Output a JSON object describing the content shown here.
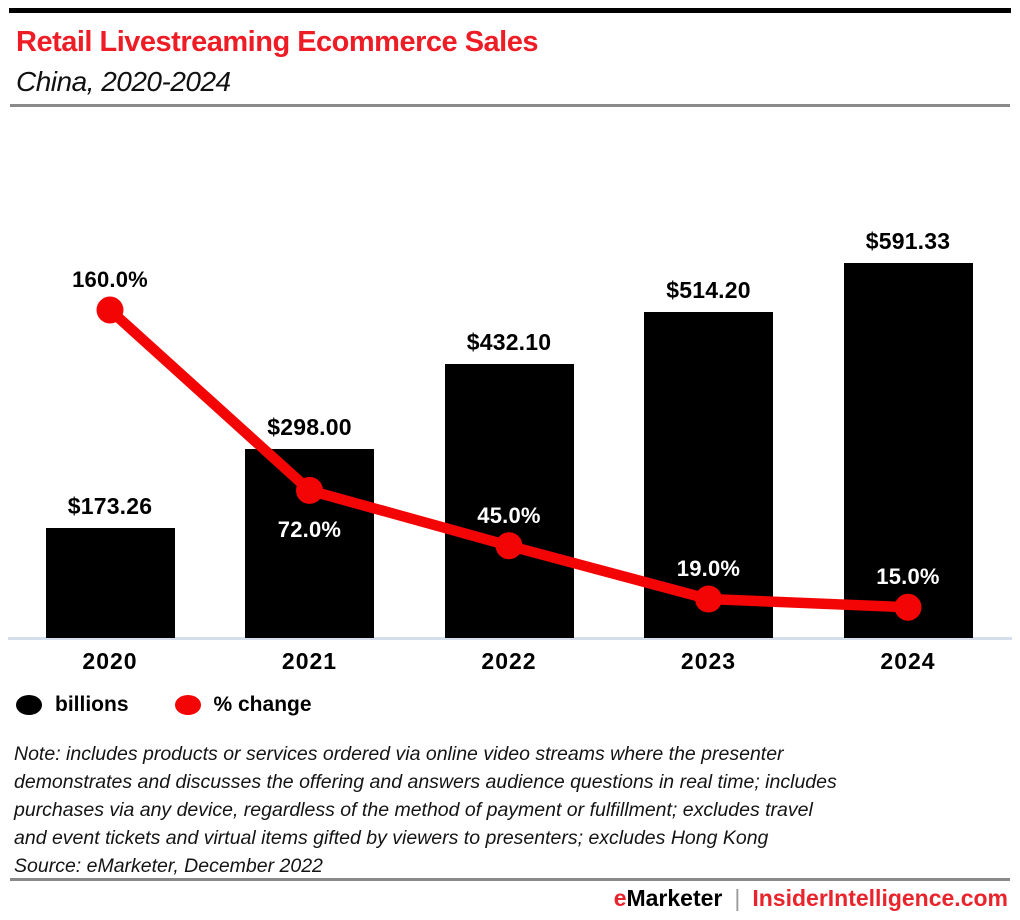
{
  "header": {
    "title": "Retail Livestreaming Ecommerce Sales",
    "subtitle": "China, 2020-2024"
  },
  "chart_data": {
    "type": "bar",
    "title": "Retail Livestreaming Ecommerce Sales",
    "subtitle": "China, 2020-2024",
    "categories": [
      "2020",
      "2021",
      "2022",
      "2023",
      "2024"
    ],
    "series": [
      {
        "name": "billions",
        "type": "bar",
        "unit": "US$ billions",
        "values": [
          173.26,
          298.0,
          432.1,
          514.2,
          591.33
        ],
        "labels": [
          "$173.26",
          "$298.00",
          "$432.10",
          "$514.20",
          "$591.33"
        ],
        "color": "#000000"
      },
      {
        "name": "% change",
        "type": "line",
        "unit": "percent",
        "values": [
          160.0,
          72.0,
          45.0,
          19.0,
          15.0
        ],
        "labels": [
          "160.0%",
          "72.0%",
          "45.0%",
          "19.0%",
          "15.0%"
        ],
        "color": "#f40505",
        "label_placement": [
          "above",
          "below",
          "above",
          "above",
          "above"
        ],
        "label_colors": [
          "#000000",
          "#ffffff",
          "#ffffff",
          "#ffffff",
          "#ffffff"
        ]
      }
    ],
    "ylim_bar": [
      0,
      620
    ],
    "ylim_pct": [
      0,
      170
    ],
    "grid": false,
    "legend_position": "bottom-left",
    "axis_line_color": "#d5dfec"
  },
  "legend": {
    "items": [
      {
        "label": "billions",
        "color": "#000000"
      },
      {
        "label": "% change",
        "color": "#f40505"
      }
    ]
  },
  "note": {
    "lines": [
      "Note: includes products or services ordered via online video streams where the presenter",
      "demonstrates and discusses the offering and answers audience questions in real time; includes",
      "purchases via any device, regardless of the method of payment or fulfillment; excludes travel",
      "and event tickets and virtual items gifted by viewers to presenters; excludes Hong Kong"
    ],
    "source": "Source: eMarketer, December 2022"
  },
  "footer": {
    "brand_e": "e",
    "brand_rest": "Marketer",
    "separator": "|",
    "site": "InsiderIntelligence.com"
  },
  "colors": {
    "title_red": "#ee1c25",
    "line_red": "#f40505",
    "footer_site_red": "#e8242c",
    "axis_line": "#d5dfec",
    "divider_gray": "#8a8a8a"
  }
}
